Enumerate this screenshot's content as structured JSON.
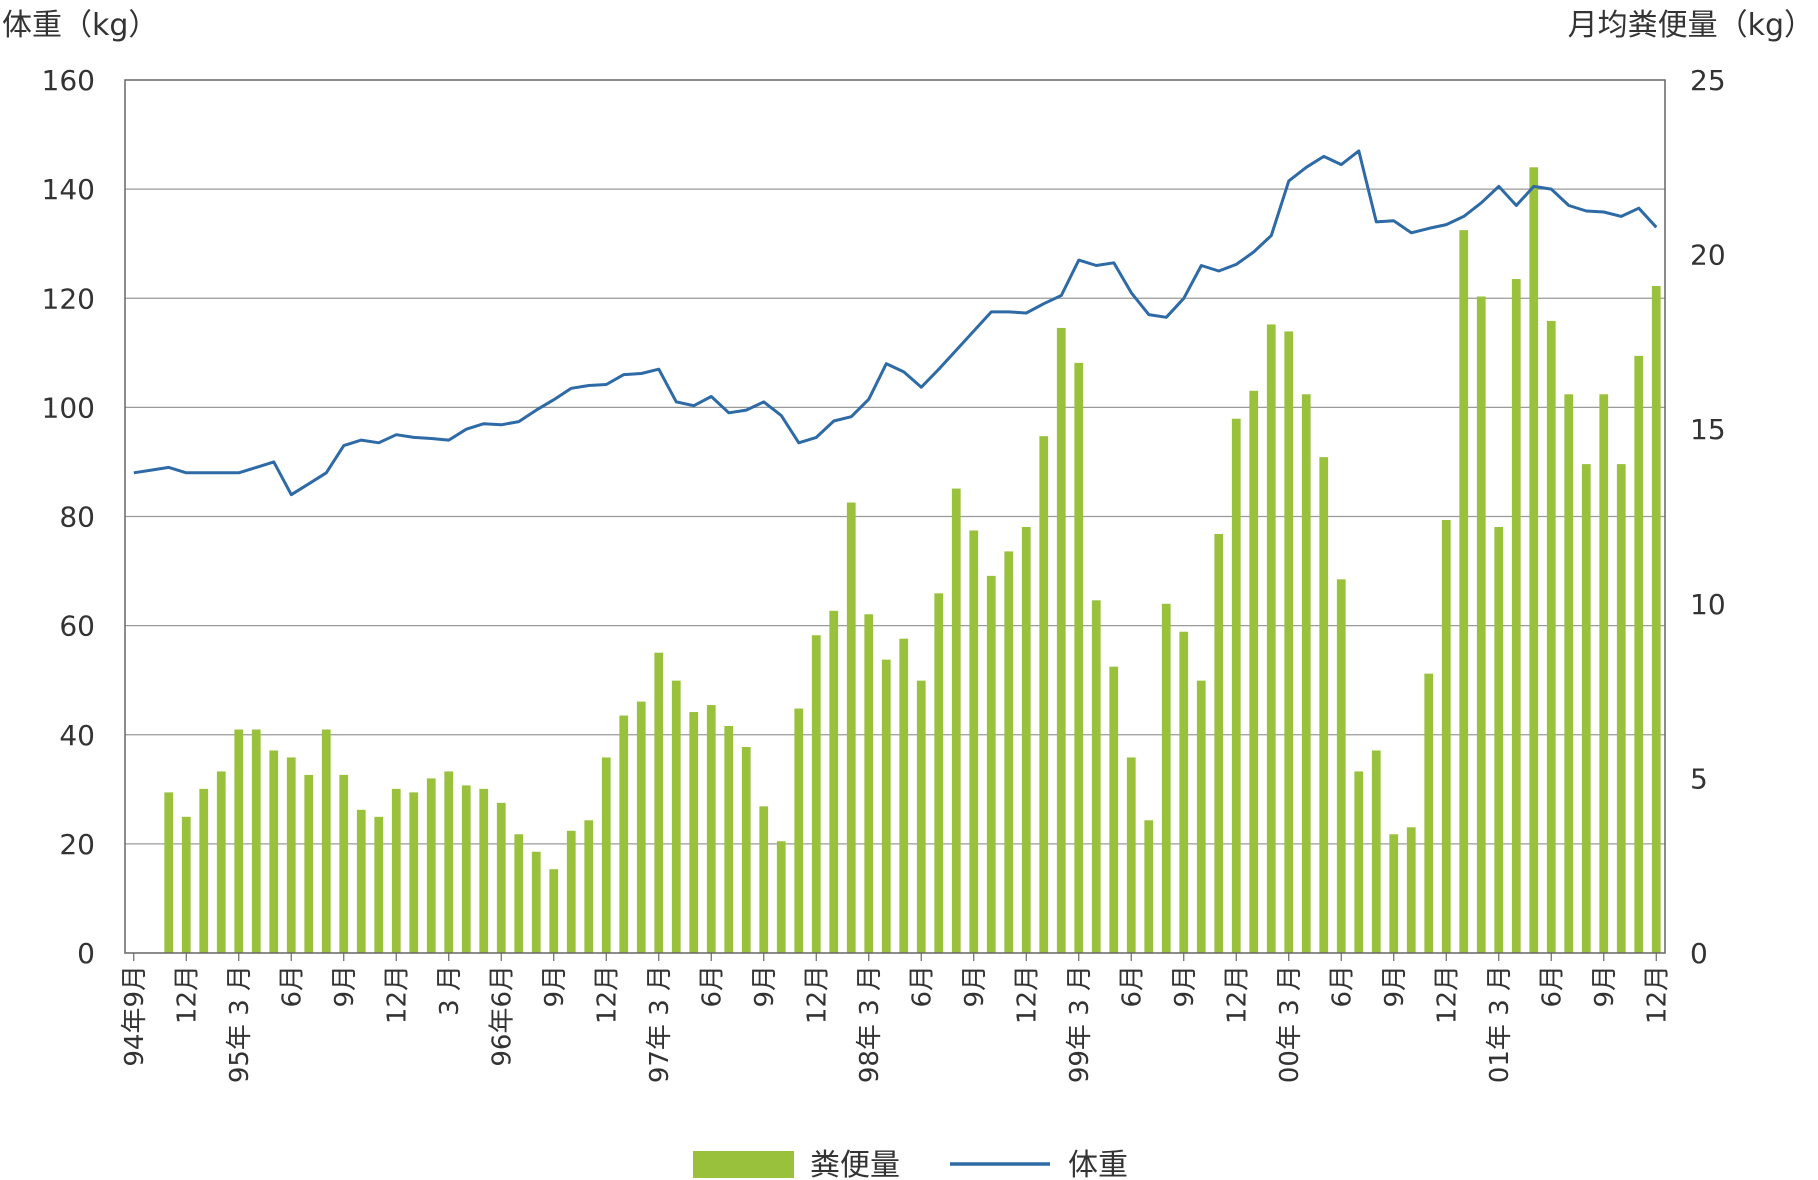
{
  "chart_data": {
    "type": "bar+line",
    "left_axis_title": "体重（kg）",
    "right_axis_title": "月均粪便量（kg）",
    "left_ylim": [
      0,
      160
    ],
    "right_ylim": [
      0,
      25
    ],
    "left_ticks": [
      "0",
      "20",
      "40",
      "60",
      "80",
      "100",
      "120",
      "140",
      "160"
    ],
    "right_ticks": [
      "0",
      "5",
      "10",
      "15",
      "20",
      "25"
    ],
    "grid": true,
    "legend_position": "bottom",
    "x_tick_labels": [
      "94年9月",
      "12月",
      "95年 3 月",
      "6月",
      "9月",
      "12月",
      "3 月",
      "96年6月",
      "9月",
      "12月",
      "97年 3 月",
      "6月",
      "9月",
      "12月",
      "98年 3 月",
      "6月",
      "9月",
      "12月",
      "99年 3 月",
      "6月",
      "9月",
      "12月",
      "00年 3 月",
      "6月",
      "9月",
      "12月",
      "01年 3 月",
      "6月",
      "9月",
      "12月"
    ],
    "tick_label_month_index": [
      0,
      3,
      6,
      9,
      12,
      15,
      18,
      21,
      24,
      27,
      30,
      33,
      36,
      39,
      42,
      45,
      48,
      51,
      54,
      57,
      60,
      63,
      66,
      69,
      72,
      75,
      78,
      81,
      84,
      87
    ],
    "series": [
      {
        "name": "粪便量",
        "type": "bar",
        "axis": "right",
        "color": "#99c13c",
        "values": [
          0,
          0,
          4.6,
          3.9,
          4.7,
          5.2,
          6.4,
          6.4,
          5.8,
          5.6,
          5.1,
          6.4,
          5.1,
          4.1,
          3.9,
          4.7,
          4.6,
          5.0,
          5.2,
          4.8,
          4.7,
          4.3,
          3.4,
          2.9,
          2.4,
          3.5,
          3.8,
          5.6,
          6.8,
          7.2,
          8.6,
          7.8,
          6.9,
          7.1,
          6.5,
          5.9,
          4.2,
          3.2,
          7.0,
          9.1,
          9.8,
          12.9,
          9.7,
          8.4,
          9.0,
          7.8,
          10.3,
          13.3,
          12.1,
          10.8,
          11.5,
          12.2,
          14.8,
          17.9,
          16.9,
          10.1,
          8.2,
          5.6,
          3.8,
          10.0,
          9.2,
          7.8,
          12.0,
          15.3,
          16.1,
          18.0,
          17.8,
          16.0,
          14.2,
          10.7,
          5.2,
          5.8,
          3.4,
          3.6,
          8.0,
          12.4,
          20.7,
          18.8,
          12.2,
          19.3,
          22.5,
          18.1,
          16.0,
          14.0,
          16.0,
          14.0,
          17.1,
          19.1
        ]
      },
      {
        "name": "体重",
        "type": "line",
        "axis": "left",
        "color": "#2e6aa6",
        "values": [
          88,
          88.5,
          89,
          88,
          88,
          88,
          88,
          89,
          90,
          84,
          86,
          88,
          93,
          94,
          93.5,
          95,
          94.5,
          94.3,
          94,
          96,
          97,
          96.8,
          97.4,
          99.5,
          101.4,
          103.5,
          104,
          104.2,
          106,
          106.2,
          107,
          101,
          100.3,
          102,
          99,
          99.5,
          101,
          98.5,
          93.5,
          94.5,
          97.5,
          98.3,
          101.5,
          108,
          106.5,
          103.7,
          107,
          110.5,
          114,
          117.5,
          117.5,
          117.3,
          119,
          120.5,
          127,
          126,
          126.5,
          121,
          117,
          116.5,
          120,
          126,
          125,
          126.2,
          128.5,
          131.5,
          141.5,
          144,
          146,
          144.5,
          147,
          134,
          134.2,
          132,
          132.8,
          133.5,
          135,
          137.5,
          140.5,
          137,
          140.5,
          140,
          137,
          136,
          135.8,
          135,
          136.5,
          133
        ]
      }
    ]
  }
}
